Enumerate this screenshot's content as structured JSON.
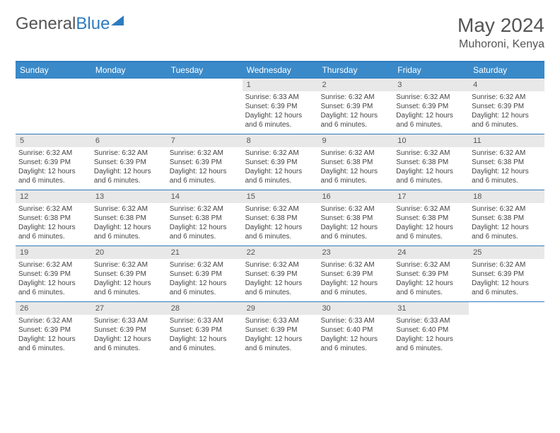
{
  "brand": {
    "part1": "General",
    "part2": "Blue"
  },
  "title": "May 2024",
  "location": "Muhoroni, Kenya",
  "colors": {
    "header_bg": "#3a8ac9",
    "border": "#2d7bc0",
    "daynum_bg": "#e8e8e8",
    "text": "#444444",
    "title": "#555555"
  },
  "day_headers": [
    "Sunday",
    "Monday",
    "Tuesday",
    "Wednesday",
    "Thursday",
    "Friday",
    "Saturday"
  ],
  "weeks": [
    [
      {
        "n": "",
        "sr": "",
        "ss": "",
        "dl": "",
        "empty": true
      },
      {
        "n": "",
        "sr": "",
        "ss": "",
        "dl": "",
        "empty": true
      },
      {
        "n": "",
        "sr": "",
        "ss": "",
        "dl": "",
        "empty": true
      },
      {
        "n": "1",
        "sr": "Sunrise: 6:33 AM",
        "ss": "Sunset: 6:39 PM",
        "dl": "Daylight: 12 hours and 6 minutes."
      },
      {
        "n": "2",
        "sr": "Sunrise: 6:32 AM",
        "ss": "Sunset: 6:39 PM",
        "dl": "Daylight: 12 hours and 6 minutes."
      },
      {
        "n": "3",
        "sr": "Sunrise: 6:32 AM",
        "ss": "Sunset: 6:39 PM",
        "dl": "Daylight: 12 hours and 6 minutes."
      },
      {
        "n": "4",
        "sr": "Sunrise: 6:32 AM",
        "ss": "Sunset: 6:39 PM",
        "dl": "Daylight: 12 hours and 6 minutes."
      }
    ],
    [
      {
        "n": "5",
        "sr": "Sunrise: 6:32 AM",
        "ss": "Sunset: 6:39 PM",
        "dl": "Daylight: 12 hours and 6 minutes."
      },
      {
        "n": "6",
        "sr": "Sunrise: 6:32 AM",
        "ss": "Sunset: 6:39 PM",
        "dl": "Daylight: 12 hours and 6 minutes."
      },
      {
        "n": "7",
        "sr": "Sunrise: 6:32 AM",
        "ss": "Sunset: 6:39 PM",
        "dl": "Daylight: 12 hours and 6 minutes."
      },
      {
        "n": "8",
        "sr": "Sunrise: 6:32 AM",
        "ss": "Sunset: 6:39 PM",
        "dl": "Daylight: 12 hours and 6 minutes."
      },
      {
        "n": "9",
        "sr": "Sunrise: 6:32 AM",
        "ss": "Sunset: 6:38 PM",
        "dl": "Daylight: 12 hours and 6 minutes."
      },
      {
        "n": "10",
        "sr": "Sunrise: 6:32 AM",
        "ss": "Sunset: 6:38 PM",
        "dl": "Daylight: 12 hours and 6 minutes."
      },
      {
        "n": "11",
        "sr": "Sunrise: 6:32 AM",
        "ss": "Sunset: 6:38 PM",
        "dl": "Daylight: 12 hours and 6 minutes."
      }
    ],
    [
      {
        "n": "12",
        "sr": "Sunrise: 6:32 AM",
        "ss": "Sunset: 6:38 PM",
        "dl": "Daylight: 12 hours and 6 minutes."
      },
      {
        "n": "13",
        "sr": "Sunrise: 6:32 AM",
        "ss": "Sunset: 6:38 PM",
        "dl": "Daylight: 12 hours and 6 minutes."
      },
      {
        "n": "14",
        "sr": "Sunrise: 6:32 AM",
        "ss": "Sunset: 6:38 PM",
        "dl": "Daylight: 12 hours and 6 minutes."
      },
      {
        "n": "15",
        "sr": "Sunrise: 6:32 AM",
        "ss": "Sunset: 6:38 PM",
        "dl": "Daylight: 12 hours and 6 minutes."
      },
      {
        "n": "16",
        "sr": "Sunrise: 6:32 AM",
        "ss": "Sunset: 6:38 PM",
        "dl": "Daylight: 12 hours and 6 minutes."
      },
      {
        "n": "17",
        "sr": "Sunrise: 6:32 AM",
        "ss": "Sunset: 6:38 PM",
        "dl": "Daylight: 12 hours and 6 minutes."
      },
      {
        "n": "18",
        "sr": "Sunrise: 6:32 AM",
        "ss": "Sunset: 6:38 PM",
        "dl": "Daylight: 12 hours and 6 minutes."
      }
    ],
    [
      {
        "n": "19",
        "sr": "Sunrise: 6:32 AM",
        "ss": "Sunset: 6:39 PM",
        "dl": "Daylight: 12 hours and 6 minutes."
      },
      {
        "n": "20",
        "sr": "Sunrise: 6:32 AM",
        "ss": "Sunset: 6:39 PM",
        "dl": "Daylight: 12 hours and 6 minutes."
      },
      {
        "n": "21",
        "sr": "Sunrise: 6:32 AM",
        "ss": "Sunset: 6:39 PM",
        "dl": "Daylight: 12 hours and 6 minutes."
      },
      {
        "n": "22",
        "sr": "Sunrise: 6:32 AM",
        "ss": "Sunset: 6:39 PM",
        "dl": "Daylight: 12 hours and 6 minutes."
      },
      {
        "n": "23",
        "sr": "Sunrise: 6:32 AM",
        "ss": "Sunset: 6:39 PM",
        "dl": "Daylight: 12 hours and 6 minutes."
      },
      {
        "n": "24",
        "sr": "Sunrise: 6:32 AM",
        "ss": "Sunset: 6:39 PM",
        "dl": "Daylight: 12 hours and 6 minutes."
      },
      {
        "n": "25",
        "sr": "Sunrise: 6:32 AM",
        "ss": "Sunset: 6:39 PM",
        "dl": "Daylight: 12 hours and 6 minutes."
      }
    ],
    [
      {
        "n": "26",
        "sr": "Sunrise: 6:32 AM",
        "ss": "Sunset: 6:39 PM",
        "dl": "Daylight: 12 hours and 6 minutes."
      },
      {
        "n": "27",
        "sr": "Sunrise: 6:33 AM",
        "ss": "Sunset: 6:39 PM",
        "dl": "Daylight: 12 hours and 6 minutes."
      },
      {
        "n": "28",
        "sr": "Sunrise: 6:33 AM",
        "ss": "Sunset: 6:39 PM",
        "dl": "Daylight: 12 hours and 6 minutes."
      },
      {
        "n": "29",
        "sr": "Sunrise: 6:33 AM",
        "ss": "Sunset: 6:39 PM",
        "dl": "Daylight: 12 hours and 6 minutes."
      },
      {
        "n": "30",
        "sr": "Sunrise: 6:33 AM",
        "ss": "Sunset: 6:40 PM",
        "dl": "Daylight: 12 hours and 6 minutes."
      },
      {
        "n": "31",
        "sr": "Sunrise: 6:33 AM",
        "ss": "Sunset: 6:40 PM",
        "dl": "Daylight: 12 hours and 6 minutes."
      },
      {
        "n": "",
        "sr": "",
        "ss": "",
        "dl": "",
        "empty": true
      }
    ]
  ]
}
